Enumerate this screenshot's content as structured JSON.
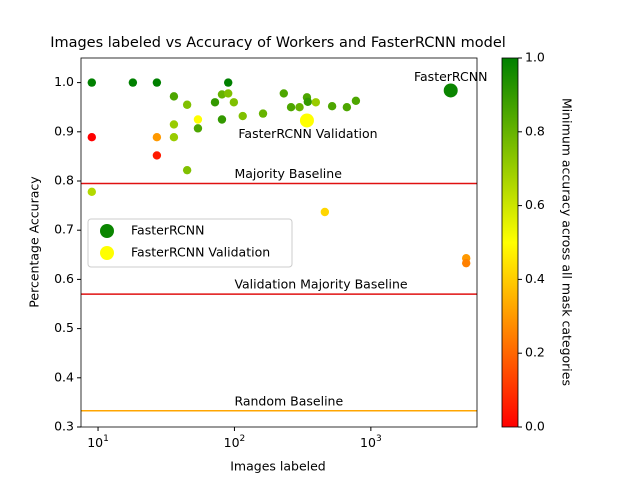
{
  "chart_data": {
    "type": "scatter",
    "title": "Images labeled vs Accuracy of Workers and FasterRCNN model",
    "xlabel": "Images labeled",
    "ylabel": "Percentage Accuracy",
    "xscale": "log",
    "xlim": [
      7.5,
      6000
    ],
    "xticks": [
      {
        "value": 10,
        "label": "10",
        "exponent": "1"
      },
      {
        "value": 100,
        "label": "10",
        "exponent": "2"
      },
      {
        "value": 1000,
        "label": "10",
        "exponent": "3"
      }
    ],
    "ylim": [
      0.3,
      1.05
    ],
    "yticks": [
      0.3,
      0.4,
      0.5,
      0.6,
      0.7,
      0.8,
      0.9,
      {
        "value": 1.0,
        "label": "1.0"
      }
    ],
    "colormap": [
      "#ff0000",
      "#ffff00",
      "#008000"
    ],
    "clim": [
      0,
      1
    ],
    "colorbar_label": "Minimum accuracy across all mask categories",
    "colorbar_ticks": [
      {
        "value": 0,
        "label": "0.0"
      },
      0.2,
      0.4,
      0.6,
      0.8,
      {
        "value": 1,
        "label": "1.0"
      }
    ],
    "legend": "center left",
    "points": {
      "x": [
        9,
        9,
        9,
        18,
        27,
        27,
        27,
        36,
        36,
        36,
        45,
        45,
        54,
        54,
        72,
        81,
        81,
        90,
        90,
        99,
        115,
        162,
        230,
        260,
        300,
        340,
        345,
        395,
        460,
        520,
        667,
        777,
        5000,
        5000
      ],
      "y": [
        1.0,
        0.889,
        0.778,
        1.0,
        1.0,
        0.889,
        0.852,
        0.972,
        0.915,
        0.889,
        0.955,
        0.822,
        0.925,
        0.907,
        0.96,
        0.976,
        0.925,
        0.978,
        1.0,
        0.96,
        0.932,
        0.937,
        0.978,
        0.95,
        0.95,
        0.97,
        0.961,
        0.96,
        0.737,
        0.952,
        0.95,
        0.963,
        0.643,
        0.633
      ],
      "c": [
        1.0,
        0.0,
        0.65,
        1.0,
        1.0,
        0.3,
        0.05,
        0.85,
        0.7,
        0.7,
        0.75,
        0.75,
        0.5,
        0.85,
        0.9,
        0.8,
        0.9,
        0.75,
        1.0,
        0.75,
        0.75,
        0.8,
        0.85,
        0.85,
        0.8,
        0.85,
        0.9,
        0.7,
        0.42,
        0.85,
        0.85,
        0.85,
        0.3,
        0.25
      ]
    },
    "series": [
      {
        "name": "FasterRCNN",
        "x": [
          3850
        ],
        "y": [
          0.984
        ],
        "c": [
          0.98
        ]
      },
      {
        "name": "FasterRCNN Validation",
        "x": [
          340
        ],
        "y": [
          0.923
        ],
        "c": [
          0.5
        ]
      }
    ],
    "baselines": [
      {
        "label": "Majority Baseline",
        "value": 0.795,
        "color": "#e01010"
      },
      {
        "label": "Validation Majority Baseline",
        "value": 0.57,
        "color": "#e01010"
      },
      {
        "label": "Random Baseline",
        "value": 0.333,
        "color": "#ffa500"
      }
    ]
  }
}
